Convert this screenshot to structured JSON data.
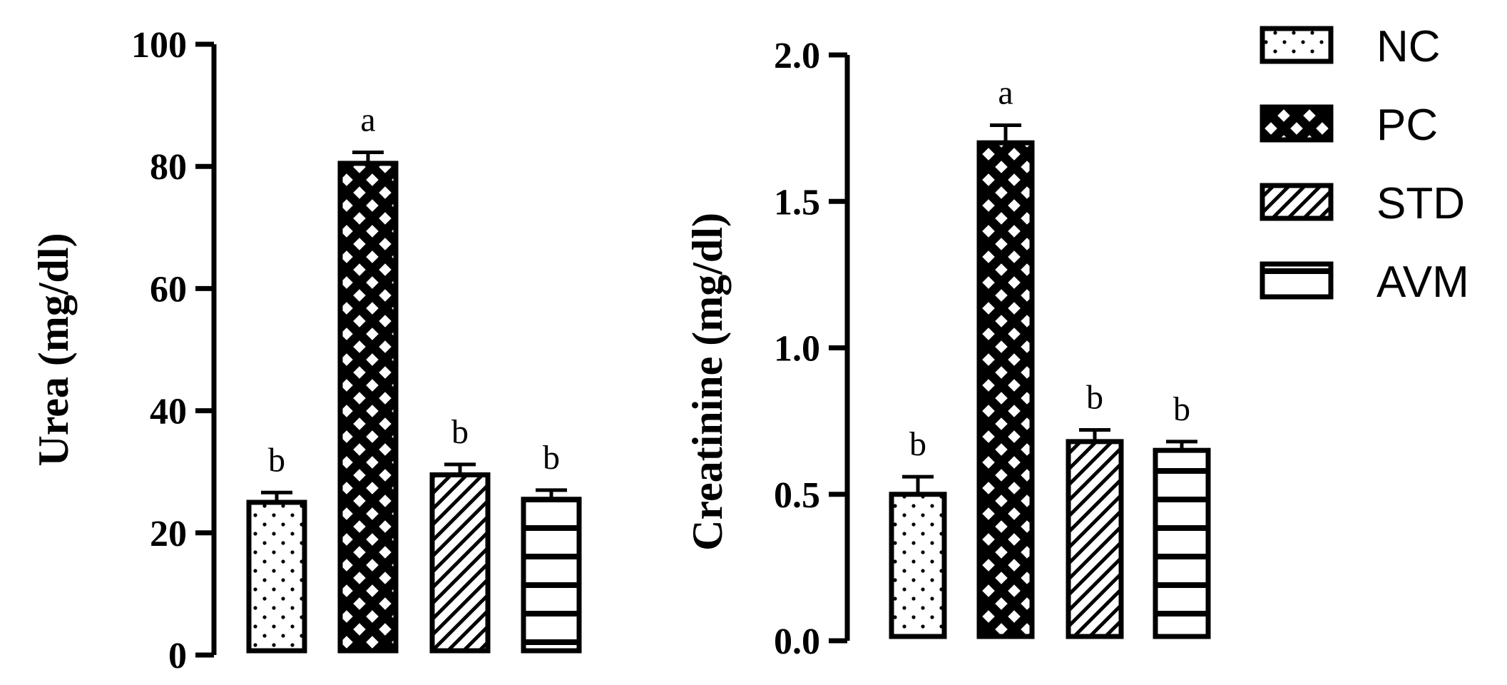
{
  "chart_data": [
    {
      "type": "bar",
      "categories": [
        "NC",
        "PC",
        "STD",
        "AVM"
      ],
      "values": [
        25,
        80.5,
        29.5,
        25.5
      ],
      "errors": [
        1.6,
        1.8,
        1.7,
        1.5
      ],
      "significance": [
        "b",
        "a",
        "b",
        "b"
      ],
      "ylabel": "Urea (mg/dl)",
      "ylim": [
        0,
        100
      ],
      "yticks": [
        0,
        20,
        40,
        60,
        80,
        100
      ],
      "ytick_labels": [
        "0",
        "20",
        "40",
        "60",
        "80",
        "100"
      ],
      "grid": false
    },
    {
      "type": "bar",
      "categories": [
        "NC",
        "PC",
        "STD",
        "AVM"
      ],
      "values": [
        0.5,
        1.7,
        0.68,
        0.65
      ],
      "errors": [
        0.06,
        0.06,
        0.04,
        0.03
      ],
      "significance": [
        "b",
        "a",
        "b",
        "b"
      ],
      "ylabel": "Creatinine (mg/dl)",
      "ylim": [
        0,
        2.0
      ],
      "yticks": [
        0,
        0.5,
        1.0,
        1.5,
        2.0
      ],
      "ytick_labels": [
        "0.0",
        "0.5",
        "1.0",
        "1.5",
        "2.0"
      ],
      "grid": false
    }
  ],
  "legend": {
    "placement": "right",
    "items": [
      {
        "label": "NC",
        "pattern": "dots"
      },
      {
        "label": "PC",
        "pattern": "crosshatch"
      },
      {
        "label": "STD",
        "pattern": "diagonal"
      },
      {
        "label": "AVM",
        "pattern": "horizontal"
      }
    ]
  },
  "colors": {
    "ink": "#000000",
    "background": "#ffffff"
  }
}
